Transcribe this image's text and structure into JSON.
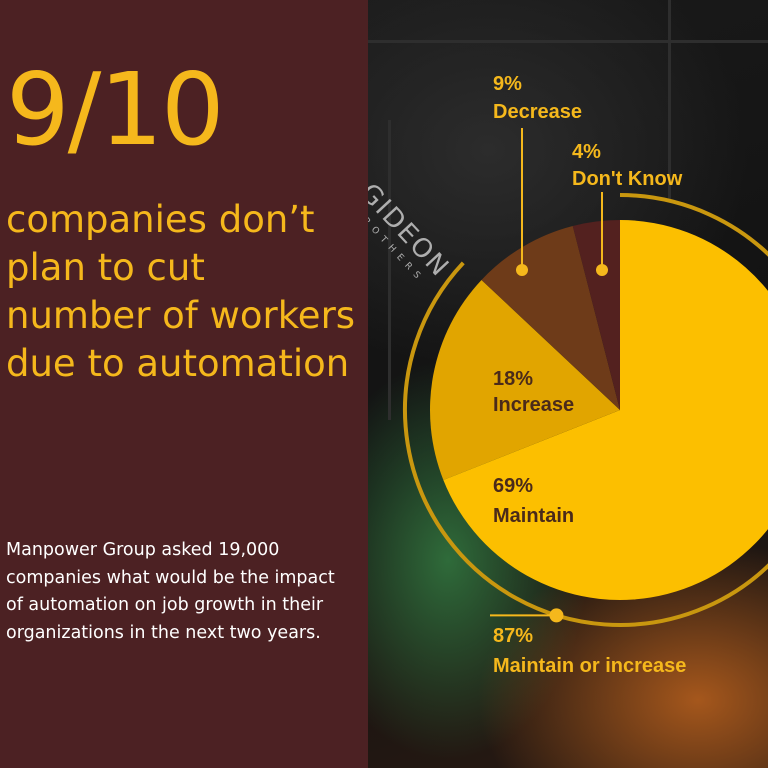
{
  "headline": {
    "big_number": "9/10",
    "text": "companies don’t plan to cut number of workers due to automation"
  },
  "description": "Manpower Group asked 19,000 companies what would be the impact of automation on job growth in their organizations in the next two years.",
  "background": {
    "brand_name": "GIDEON",
    "brand_sub": "BROTHERS"
  },
  "colors": {
    "panel": "#4c2123",
    "accent": "#f5b81c",
    "maintain": "#fcbf00",
    "increase": "#e1a500",
    "decrease": "#6e3b19",
    "dont_know": "#53211f",
    "ring": "#c9970f"
  },
  "chart_data": {
    "type": "pie",
    "slices": [
      {
        "pct": "69%",
        "value": 69,
        "label": "Maintain",
        "color": "#fcbf00"
      },
      {
        "pct": "18%",
        "value": 18,
        "label": "Increase",
        "color": "#e1a500"
      },
      {
        "pct": "9%",
        "value": 9,
        "label": "Decrease",
        "color": "#6e3b19"
      },
      {
        "pct": "4%",
        "value": 4,
        "label": "Don't Know",
        "color": "#53211f"
      }
    ],
    "annotation": {
      "pct": "87%",
      "label": "Maintain or increase",
      "value": 87
    }
  }
}
